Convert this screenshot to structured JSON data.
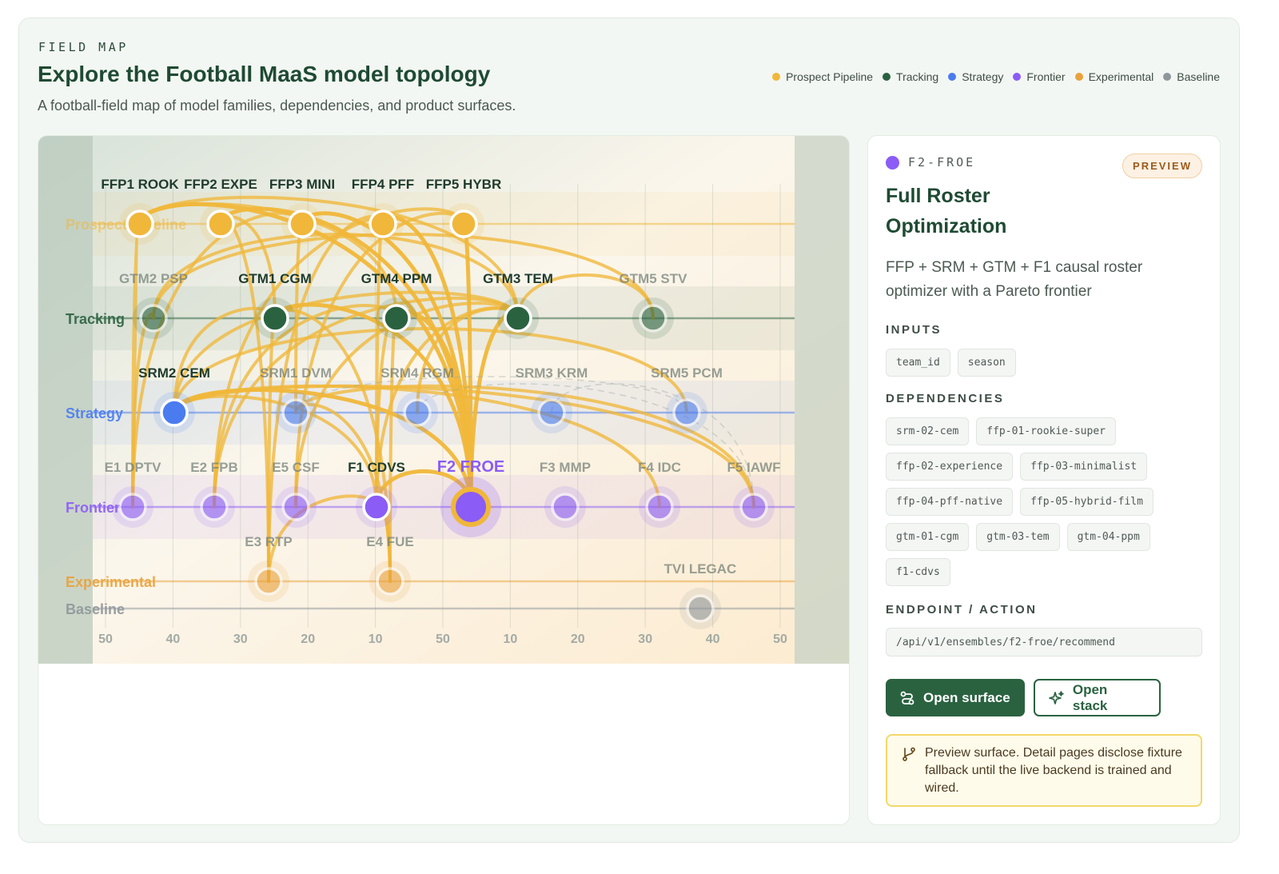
{
  "header": {
    "eyebrow": "FIELD MAP",
    "title": "Explore the Football MaaS model topology",
    "subtitle": "A football-field map of model families, dependencies, and product surfaces."
  },
  "legend": [
    {
      "label": "Prospect Pipeline",
      "color": "#f0b73a"
    },
    {
      "label": "Tracking",
      "color": "#2a6240"
    },
    {
      "label": "Strategy",
      "color": "#4a7cf0"
    },
    {
      "label": "Frontier",
      "color": "#8b5cf6"
    },
    {
      "label": "Experimental",
      "color": "#e9a23b"
    },
    {
      "label": "Baseline",
      "color": "#8f969b"
    }
  ],
  "field": {
    "lanes": [
      {
        "key": "prospect",
        "label": "Prospect Pipeline",
        "color": "#f0b73a"
      },
      {
        "key": "tracking",
        "label": "Tracking",
        "color": "#2a6240"
      },
      {
        "key": "strategy",
        "label": "Strategy",
        "color": "#4a7cf0"
      },
      {
        "key": "frontier",
        "label": "Frontier",
        "color": "#8b5cf6"
      },
      {
        "key": "experimental",
        "label": "Experimental",
        "color": "#e9a23b"
      },
      {
        "key": "baseline",
        "label": "Baseline",
        "color": "#8f969b"
      }
    ],
    "yard_markers": [
      "50",
      "40",
      "30",
      "20",
      "10",
      "50",
      "10",
      "20",
      "30",
      "40",
      "50"
    ],
    "nodes": [
      {
        "id": "ffp1",
        "label": "FFP1 ROOK",
        "lane": "prospect",
        "active": true
      },
      {
        "id": "ffp2",
        "label": "FFP2 EXPE",
        "lane": "prospect",
        "active": true
      },
      {
        "id": "ffp3",
        "label": "FFP3 MINI",
        "lane": "prospect",
        "active": true
      },
      {
        "id": "ffp4",
        "label": "FFP4 PFF",
        "lane": "prospect",
        "active": true
      },
      {
        "id": "ffp5",
        "label": "FFP5 HYBR",
        "lane": "prospect",
        "active": true
      },
      {
        "id": "gtm2",
        "label": "GTM2 PSP",
        "lane": "tracking",
        "active": false
      },
      {
        "id": "gtm1",
        "label": "GTM1 CGM",
        "lane": "tracking",
        "active": true
      },
      {
        "id": "gtm4",
        "label": "GTM4 PPM",
        "lane": "tracking",
        "active": true
      },
      {
        "id": "gtm3",
        "label": "GTM3 TEM",
        "lane": "tracking",
        "active": true
      },
      {
        "id": "gtm5",
        "label": "GTM5 STV",
        "lane": "tracking",
        "active": false
      },
      {
        "id": "srm2",
        "label": "SRM2 CEM",
        "lane": "strategy",
        "active": true
      },
      {
        "id": "srm1",
        "label": "SRM1 DVM",
        "lane": "strategy",
        "active": false
      },
      {
        "id": "srm4",
        "label": "SRM4 RGM",
        "lane": "strategy",
        "active": false
      },
      {
        "id": "srm3",
        "label": "SRM3 KRM",
        "lane": "strategy",
        "active": false
      },
      {
        "id": "srm5",
        "label": "SRM5 PCM",
        "lane": "strategy",
        "active": false
      },
      {
        "id": "e1",
        "label": "E1 DPTV",
        "lane": "frontier",
        "active": false
      },
      {
        "id": "e2",
        "label": "E2 FPB",
        "lane": "frontier",
        "active": false
      },
      {
        "id": "e5",
        "label": "E5 CSF",
        "lane": "frontier",
        "active": false
      },
      {
        "id": "f1",
        "label": "F1 CDVS",
        "lane": "frontier",
        "active": true
      },
      {
        "id": "f2",
        "label": "F2 FROE",
        "lane": "frontier",
        "active": true,
        "selected": true
      },
      {
        "id": "f3",
        "label": "F3 MMP",
        "lane": "frontier",
        "active": false
      },
      {
        "id": "f4",
        "label": "F4 IDC",
        "lane": "frontier",
        "active": false
      },
      {
        "id": "f5",
        "label": "F5 IAWF",
        "lane": "frontier",
        "active": false
      },
      {
        "id": "e3",
        "label": "E3 RTP",
        "lane": "experimental",
        "active": false
      },
      {
        "id": "e4",
        "label": "E4 FUE",
        "lane": "experimental",
        "active": false
      },
      {
        "id": "tvi",
        "label": "TVI LEGAC",
        "lane": "baseline",
        "active": false
      }
    ],
    "edges": [
      [
        "ffp1",
        "gtm3"
      ],
      [
        "ffp1",
        "gtm4"
      ],
      [
        "ffp1",
        "f2"
      ],
      [
        "ffp1",
        "e1"
      ],
      [
        "ffp2",
        "f2"
      ],
      [
        "ffp2",
        "e3"
      ],
      [
        "ffp2",
        "gtm1"
      ],
      [
        "ffp3",
        "f2"
      ],
      [
        "ffp3",
        "e1"
      ],
      [
        "ffp3",
        "srm1"
      ],
      [
        "ffp4",
        "f2"
      ],
      [
        "ffp4",
        "e3"
      ],
      [
        "ffp4",
        "f1"
      ],
      [
        "ffp5",
        "f2"
      ],
      [
        "ffp5",
        "e2"
      ],
      [
        "ffp5",
        "e5"
      ],
      [
        "gtm2",
        "gtm3"
      ],
      [
        "gtm2",
        "gtm5"
      ],
      [
        "gtm2",
        "e1"
      ],
      [
        "gtm1",
        "f2"
      ],
      [
        "gtm1",
        "e3"
      ],
      [
        "gtm1",
        "e4"
      ],
      [
        "gtm1",
        "srm2"
      ],
      [
        "gtm4",
        "f2"
      ],
      [
        "gtm4",
        "f1"
      ],
      [
        "gtm4",
        "e4"
      ],
      [
        "gtm4",
        "e2"
      ],
      [
        "gtm3",
        "f2"
      ],
      [
        "gtm3",
        "f1"
      ],
      [
        "gtm3",
        "e5"
      ],
      [
        "gtm3",
        "e2"
      ],
      [
        "gtm3",
        "srm2"
      ],
      [
        "gtm3",
        "srm4"
      ],
      [
        "gtm3",
        "gtm5"
      ],
      [
        "srm2",
        "f2"
      ],
      [
        "srm2",
        "f5"
      ],
      [
        "srm2",
        "f1"
      ],
      [
        "srm2",
        "f4"
      ],
      [
        "srm2",
        "srm5"
      ],
      [
        "srm1",
        "f5"
      ],
      [
        "srm1",
        "e4"
      ],
      [
        "f1",
        "f2"
      ],
      [
        "e4",
        "f1"
      ],
      [
        "e3",
        "f1"
      ]
    ]
  },
  "detail": {
    "code": "F2-FROE",
    "badge": "PREVIEW",
    "title": "Full Roster Optimization",
    "description": "FFP + SRM + GTM + F1 causal roster optimizer with a Pareto frontier",
    "inputs_heading": "INPUTS",
    "inputs": [
      "team_id",
      "season"
    ],
    "dependencies_heading": "DEPENDENCIES",
    "dependencies": [
      "srm-02-cem",
      "ffp-01-rookie-super",
      "ffp-02-experience",
      "ffp-03-minimalist",
      "ffp-04-pff-native",
      "ffp-05-hybrid-film",
      "gtm-01-cgm",
      "gtm-03-tem",
      "gtm-04-ppm",
      "f1-cdvs"
    ],
    "endpoint_heading": "ENDPOINT / ACTION",
    "endpoint": "/api/v1/ensembles/f2-froe/recommend",
    "primary_button": "Open surface",
    "secondary_button": "Open stack",
    "notice": "Preview surface. Detail pages disclose fixture fallback until the live backend is trained and wired."
  }
}
